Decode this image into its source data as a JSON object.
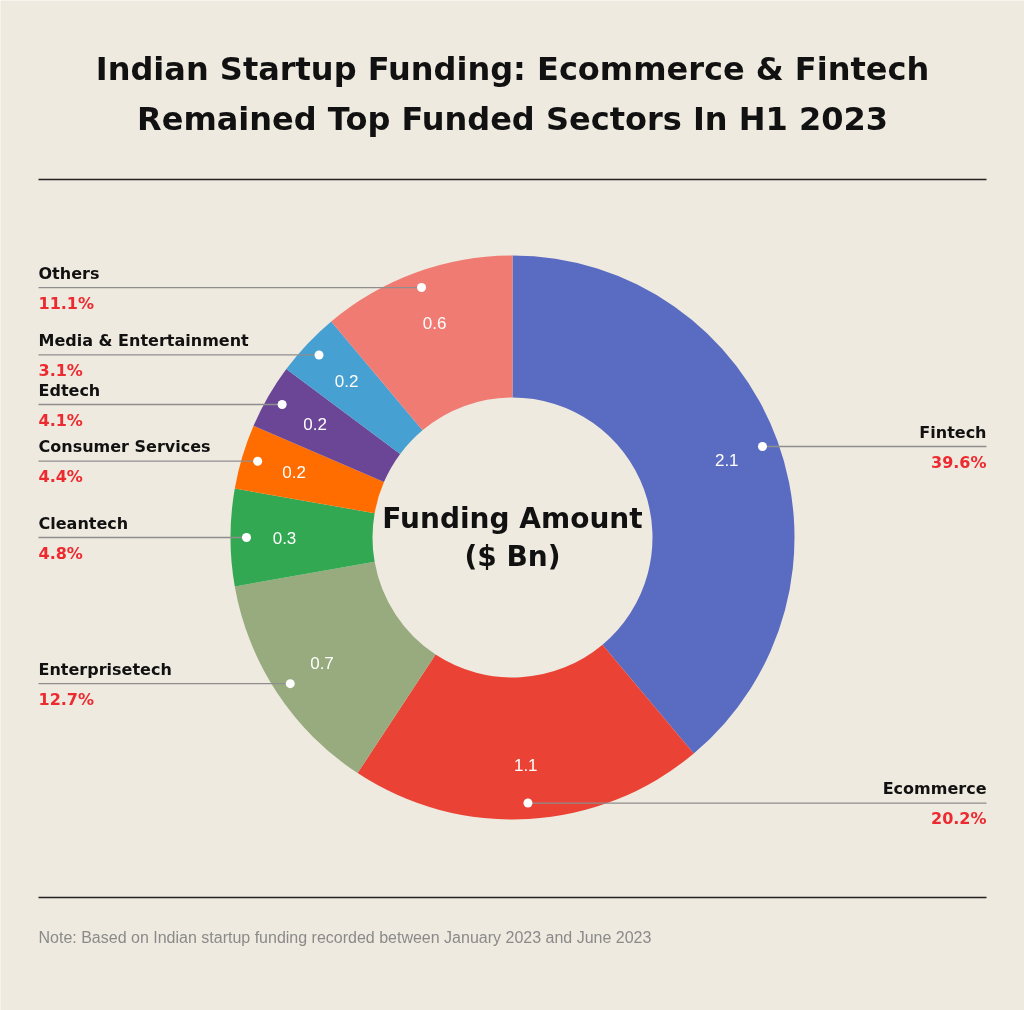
{
  "chart_data": {
    "type": "donut",
    "title": "Indian Startup Funding: Ecommerce & Fintech Remained Top Funded Sectors In H1 2023",
    "ylabel": "Funding Amount ($ Bn)",
    "categories": [
      "Fintech",
      "Ecommerce",
      "Enterprisetech",
      "Cleantech",
      "Consumer Services",
      "Edtech",
      "Media & Entertainment",
      "Others"
    ],
    "values": [
      2.1,
      1.1,
      0.7,
      0.3,
      0.2,
      0.2,
      0.2,
      0.6
    ],
    "colors": [
      "#5a6bc2",
      "#ea4336",
      "#97ab7f",
      "#33a852",
      "#ff6d00",
      "#6b4696",
      "#46a0d2",
      "#f07b73"
    ],
    "data_labels": true,
    "annotations": [
      {
        "text": "39.6%",
        "x": "Fintech"
      },
      {
        "text": "20.2%",
        "x": "Ecommerce"
      },
      {
        "text": "12.7%",
        "x": "Enterprisetech"
      },
      {
        "text": "4.8%",
        "x": "Cleantech"
      },
      {
        "text": "4.4%",
        "x": "Consumer Services"
      },
      {
        "text": "4.1%",
        "x": "Edtech"
      },
      {
        "text": "3.1%",
        "x": "Media & Entertainment"
      },
      {
        "text": "11.1%",
        "x": "Others"
      },
      "Note: Based on Indian startup funding recorded between January 2023 and June 2023"
    ]
  }
}
